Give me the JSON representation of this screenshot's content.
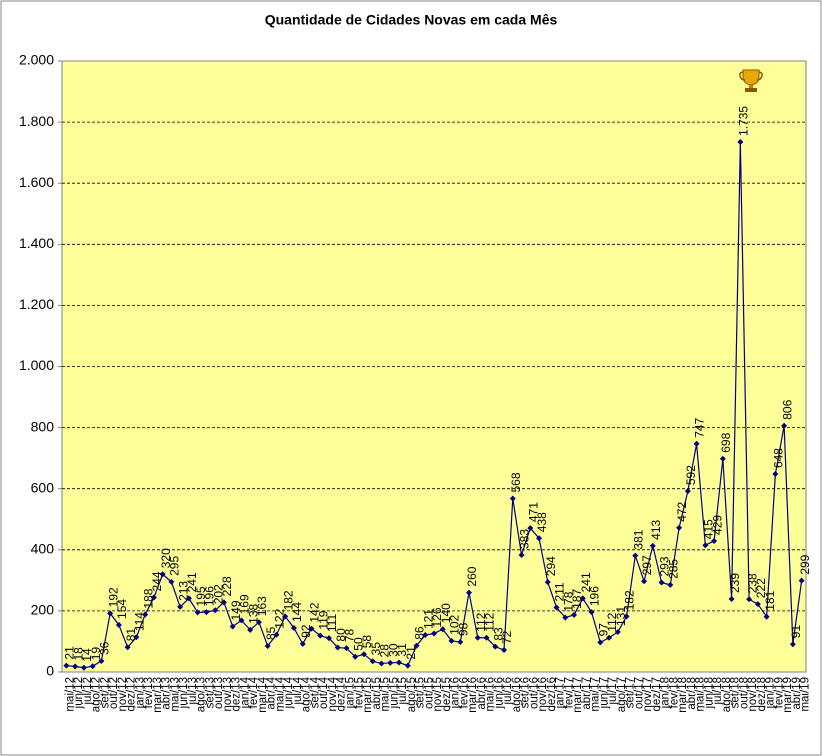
{
  "chart_data": {
    "type": "line",
    "title": "Quantidade de Cidades Novas em cada Mês",
    "categories": [
      "mai/12",
      "jun/12",
      "jul/12",
      "ago/12",
      "set/12",
      "out/12",
      "nov/12",
      "dez/12",
      "jan/13",
      "fev/13",
      "mar/13",
      "abr/13",
      "mai/13",
      "jun/13",
      "jul/13",
      "ago/13",
      "set/13",
      "out/13",
      "nov/13",
      "dez/13",
      "jan/14",
      "fev/14",
      "mar/14",
      "abr/14",
      "mai/14",
      "jun/14",
      "jul/14",
      "ago/14",
      "set/14",
      "out/14",
      "nov/14",
      "dez/14",
      "jan/15",
      "fev/15",
      "mar/15",
      "abr/15",
      "mai/15",
      "jun/15",
      "jul/15",
      "ago/15",
      "set/15",
      "out/15",
      "nov/15",
      "dez/15",
      "jan/16",
      "fev/16",
      "mar/16",
      "abr/16",
      "mai/16",
      "jun/16",
      "jul/16",
      "ago/16",
      "set/16",
      "out/16",
      "nov/16",
      "dez/16",
      "jan/17",
      "fev/17",
      "mar/17",
      "abr/17",
      "mai/17",
      "jun/17",
      "jul/17",
      "ago/17",
      "set/17",
      "out/17",
      "nov/17",
      "dez/17",
      "jan/18",
      "fev/18",
      "mar/18",
      "abr/18",
      "mai/18",
      "jun/18",
      "jul/18",
      "ago/18",
      "set/18",
      "out/18",
      "nov/18",
      "dez/18",
      "jan/19",
      "fev/19",
      "mar/19",
      "abr/19",
      "mai/19"
    ],
    "values": [
      21,
      18,
      14,
      19,
      36,
      192,
      154,
      81,
      114,
      188,
      244,
      320,
      295,
      213,
      241,
      195,
      196,
      202,
      228,
      149,
      169,
      138,
      163,
      85,
      122,
      182,
      144,
      92,
      142,
      119,
      111,
      80,
      78,
      50,
      58,
      35,
      28,
      30,
      31,
      21,
      86,
      121,
      126,
      140,
      102,
      98,
      260,
      112,
      112,
      83,
      72,
      568,
      383,
      471,
      438,
      294,
      211,
      178,
      187,
      241,
      196,
      97,
      112,
      131,
      182,
      381,
      297,
      413,
      293,
      285,
      472,
      592,
      747,
      415,
      429,
      698,
      239,
      1735,
      238,
      222,
      181,
      648,
      806,
      91,
      299
    ],
    "value_labels": [
      "21",
      "18",
      "14",
      "19",
      "36",
      "192",
      "154",
      "81",
      "114",
      "188",
      "244",
      "320",
      "295",
      "213",
      "241",
      "195",
      "196",
      "202",
      "228",
      "149",
      "169",
      "138",
      "163",
      "85",
      "122",
      "182",
      "144",
      "92",
      "142",
      "119",
      "111",
      "80",
      "78",
      "50",
      "58",
      "35",
      "28",
      "30",
      "31",
      "21",
      "86",
      "121",
      "126",
      "140",
      "102",
      "98",
      "260",
      "112",
      "112",
      "83",
      "72",
      "568",
      "383",
      "471",
      "438",
      "294",
      "211",
      "178",
      "187",
      "241",
      "196",
      "97",
      "112",
      "131",
      "182",
      "381",
      "297",
      "413",
      "293",
      "285",
      "472",
      "592",
      "747",
      "415",
      "429",
      "698",
      "239",
      "1.735",
      "238",
      "222",
      "181",
      "648",
      "806",
      "91",
      "299"
    ],
    "color": "#000080",
    "ylim": [
      0,
      2000
    ],
    "yticks": [
      0,
      200,
      400,
      600,
      800,
      {
        "value": 1000,
        "label": "1.000"
      },
      {
        "value": 1200,
        "label": "1.200"
      },
      {
        "value": 1400,
        "label": "1.400"
      },
      {
        "value": 1600,
        "label": "1.600"
      },
      {
        "value": 1800,
        "label": "1.800"
      },
      {
        "value": 2000,
        "label": "2.000"
      }
    ],
    "grid": true
  }
}
